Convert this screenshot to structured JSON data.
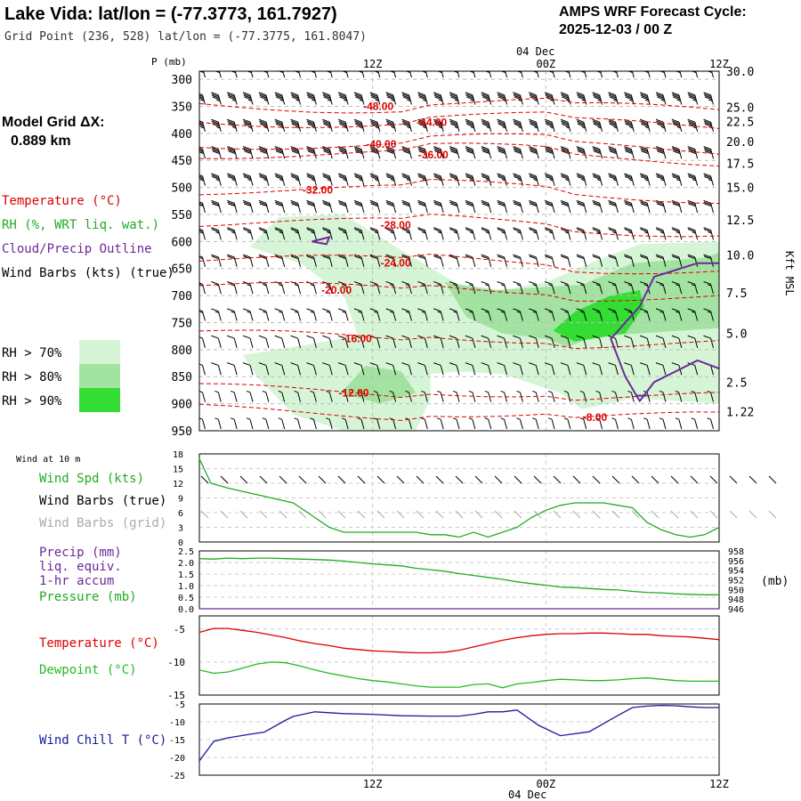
{
  "header": {
    "station_title": "Lake Vida:  lat/lon = (-77.3773, 161.7927)",
    "grid_point": "Grid Point (236, 528) lat/lon = (-77.3775, 161.8047)",
    "product": "AMPS WRF Forecast Cycle:",
    "cycle": "2025-12-03 / 00  Z",
    "grid_label": "Model Grid ΔX:",
    "grid_value": "0.889 km"
  },
  "time_axis": {
    "ticks": [
      "12Z",
      "00Z",
      "12Z"
    ],
    "date_label": "04 Dec",
    "forecast_hours": [
      0,
      12,
      24,
      36
    ]
  },
  "colors": {
    "temperature": "#dd0000",
    "rh": "#22aa22",
    "cloud": "#6a2a9a",
    "pressure": "#22aa22",
    "precip": "#6a2a9a",
    "dewpoint": "#22bb22",
    "windchill": "#1a1aa0",
    "wind_spd": "#22aa22",
    "grid_barb": "#aaaaaa",
    "rh70": "#d6f5d6",
    "rh80": "#a2e3a2",
    "rh90": "#33dd33"
  },
  "legend": {
    "temperature": "Temperature (°C)",
    "rh": "RH (%, WRT liq. wat.)",
    "cloud": "Cloud/Precip Outline",
    "barbs": "Wind Barbs (kts) (true)",
    "rh70": "RH > 70%",
    "rh80": "RH > 80%",
    "rh90": "RH > 90%"
  },
  "chart_data": [
    {
      "type": "heatmap",
      "title": "Time-height cross section",
      "ylabel": "P (mb)",
      "y2label": "Kft MSL",
      "pressure_levels": [
        300,
        350,
        400,
        450,
        500,
        550,
        600,
        650,
        700,
        750,
        800,
        850,
        900,
        950
      ],
      "ylim": [
        950,
        285
      ],
      "height_kft": [
        30.0,
        25.0,
        22.5,
        20.0,
        17.5,
        15.0,
        12.5,
        10.0,
        7.5,
        5.0,
        2.5,
        1.22
      ],
      "height_kft_labels": [
        "30.0",
        "25.0",
        "22.5",
        "20.0",
        "17.5",
        "15.0",
        "12.5",
        "10.0",
        "7.5",
        "5.0",
        "2.5",
        "1.22"
      ],
      "height_kft_pressure": [
        285,
        352,
        378,
        415,
        455,
        500,
        560,
        625,
        695,
        770,
        860,
        915
      ],
      "temperature_isotherms": [
        {
          "label": "-48.00",
          "value": -48,
          "label_at": [
            12.4,
            350
          ]
        },
        {
          "label": "-44.00",
          "value": -44,
          "label_at": [
            16.1,
            380
          ]
        },
        {
          "label": "-40.00",
          "value": -40,
          "label_at": [
            12.6,
            420
          ]
        },
        {
          "label": "-36.00",
          "value": -36,
          "label_at": [
            16.2,
            440
          ]
        },
        {
          "label": "-32.00",
          "value": -32,
          "label_at": [
            8.2,
            505
          ]
        },
        {
          "label": "-28.00",
          "value": -28,
          "label_at": [
            13.6,
            570
          ]
        },
        {
          "label": "-24.00",
          "value": -24,
          "label_at": [
            13.6,
            640
          ]
        },
        {
          "label": "-20.00",
          "value": -20,
          "label_at": [
            9.5,
            690
          ]
        },
        {
          "label": "-16.00",
          "value": -16,
          "label_at": [
            10.9,
            780
          ]
        },
        {
          "label": "-12.00",
          "value": -12,
          "label_at": [
            10.7,
            880
          ]
        },
        {
          "label": "-8.00",
          "value": -8,
          "label_at": [
            27.4,
            925
          ]
        }
      ],
      "rh_thresholds": [
        70,
        80,
        90
      ],
      "rh_regions": [
        {
          "threshold": 70,
          "outline": [
            [
              3.5,
              610
            ],
            [
              5.5,
              555
            ],
            [
              10.0,
              550
            ],
            [
              13.0,
              600
            ],
            [
              15.5,
              640
            ],
            [
              18.0,
              680
            ],
            [
              21.0,
              690
            ],
            [
              24.0,
              675
            ],
            [
              28.0,
              630
            ],
            [
              30.5,
              605
            ],
            [
              36,
              600
            ],
            [
              36,
              900
            ],
            [
              30.0,
              890
            ],
            [
              26.5,
              910
            ],
            [
              25.0,
              880
            ],
            [
              21.0,
              845
            ],
            [
              18.0,
              840
            ],
            [
              16.0,
              845
            ],
            [
              16.0,
              890
            ],
            [
              15.0,
              950
            ],
            [
              10.0,
              950
            ],
            [
              6.5,
              920
            ],
            [
              4.0,
              850
            ],
            [
              3.0,
              810
            ],
            [
              6.5,
              795
            ],
            [
              11.0,
              775
            ],
            [
              10.0,
              700
            ],
            [
              7.0,
              640
            ],
            [
              3.5,
              610
            ]
          ]
        },
        {
          "threshold": 80,
          "outline": [
            [
              17.0,
              675
            ],
            [
              20.5,
              690
            ],
            [
              26.5,
              680
            ],
            [
              30.0,
              640
            ],
            [
              35.0,
              630
            ],
            [
              36,
              620
            ],
            [
              36,
              760
            ],
            [
              30.5,
              770
            ],
            [
              27.5,
              775
            ],
            [
              25.5,
              795
            ],
            [
              24.0,
              780
            ],
            [
              21.0,
              770
            ],
            [
              18.5,
              740
            ],
            [
              17.0,
              675
            ]
          ]
        },
        {
          "threshold": 80,
          "outline": [
            [
              9.8,
              880
            ],
            [
              11.5,
              830
            ],
            [
              14.0,
              840
            ],
            [
              15.0,
              880
            ],
            [
              12.5,
              900
            ],
            [
              9.8,
              880
            ]
          ]
        },
        {
          "threshold": 90,
          "outline": [
            [
              24.5,
              765
            ],
            [
              26.0,
              730
            ],
            [
              28.5,
              700
            ],
            [
              30.5,
              690
            ],
            [
              30.8,
              720
            ],
            [
              29.5,
              770
            ],
            [
              26.0,
              785
            ],
            [
              24.5,
              765
            ]
          ]
        }
      ],
      "cloud_outline": [
        {
          "points": [
            [
              7.8,
              600
            ],
            [
              9.0,
              592
            ],
            [
              8.8,
              605
            ],
            [
              7.8,
              600
            ]
          ]
        },
        {
          "points": [
            [
              36,
              640
            ],
            [
              34.5,
              640
            ],
            [
              31.5,
              665
            ],
            [
              30.5,
              720
            ],
            [
              28.5,
              780
            ],
            [
              29.5,
              850
            ],
            [
              30.5,
              895
            ],
            [
              31.5,
              860
            ],
            [
              34.5,
              820
            ],
            [
              36,
              835
            ]
          ]
        },
        {
          "points": [
            [
              30.2,
              885
            ],
            [
              31.0,
              885
            ]
          ]
        }
      ],
      "wind_barbs_kts": {
        "rows_pressure": [
          300,
          350,
          400,
          450,
          500,
          550,
          600,
          650,
          700,
          750,
          800,
          850,
          900,
          950
        ],
        "speed_by_level": [
          40,
          45,
          45,
          40,
          35,
          30,
          25,
          20,
          15,
          15,
          10,
          10,
          5,
          5
        ],
        "direction_deg": 330
      }
    },
    {
      "type": "line",
      "title": "Wind at 10 m",
      "ylabel": "Wind Spd (kts)",
      "ylim": [
        0,
        18
      ],
      "yticks": [
        0,
        3,
        6,
        9,
        12,
        15,
        18
      ],
      "x": [
        0,
        0.8,
        2,
        3.5,
        5,
        6.5,
        8,
        9,
        10,
        11,
        12,
        13,
        14,
        15,
        16,
        17,
        18,
        19,
        20,
        21,
        22,
        23,
        24,
        25,
        26,
        27,
        28,
        29,
        30,
        31,
        32,
        33,
        34,
        35,
        36
      ],
      "values": [
        17,
        12,
        11,
        10,
        9,
        8,
        5,
        3,
        2,
        2,
        2,
        2,
        2,
        2,
        1.5,
        1.5,
        1,
        2,
        1,
        2,
        3,
        5,
        6.5,
        7.5,
        8,
        8,
        8,
        7.5,
        7,
        4,
        2.5,
        1.5,
        1,
        1.5,
        3
      ],
      "barbs_label": "Wind Barbs (true)",
      "grid_barbs_label": "Wind Barbs (grid)"
    },
    {
      "type": "line",
      "title": "Precip / Pressure",
      "series": [
        {
          "name": "Precip (mm) liq. equiv. 1-hr accum",
          "values": [
            0,
            0,
            0,
            0,
            0,
            0,
            0,
            0,
            0,
            0,
            0,
            0,
            0,
            0,
            0,
            0,
            0,
            0,
            0,
            0,
            0,
            0,
            0,
            0,
            0,
            0,
            0,
            0,
            0,
            0,
            0,
            0,
            0,
            0,
            0,
            0,
            0
          ]
        },
        {
          "name": "Pressure (mb)",
          "values": [
            956.4,
            956.3,
            956.5,
            956.4,
            956.5,
            956.5,
            956.4,
            956.3,
            956.2,
            956.1,
            955.9,
            955.6,
            955.3,
            955.1,
            954.9,
            954.4,
            954.1,
            953.8,
            953.3,
            952.9,
            952.5,
            952.1,
            951.6,
            951.2,
            950.9,
            950.5,
            950.4,
            950.2,
            950.0,
            949.9,
            949.6,
            949.4,
            949.3,
            949.1,
            949.0,
            948.9,
            948.9
          ]
        }
      ],
      "x": [
        0,
        1,
        2,
        3,
        4,
        5,
        6,
        7,
        8,
        9,
        10,
        11,
        12,
        13,
        14,
        15,
        16,
        17,
        18,
        19,
        20,
        21,
        22,
        23,
        24,
        25,
        26,
        27,
        28,
        29,
        30,
        31,
        32,
        33,
        34,
        35,
        36
      ],
      "precip_ylim": [
        0,
        2.5
      ],
      "precip_yticks": [
        "0.0",
        "0.5",
        "1.0",
        "1.5",
        "2.0",
        "2.5"
      ],
      "pressure_ylim": [
        946,
        958
      ],
      "pressure_yticks": [
        "946",
        "948",
        "950",
        "952",
        "954",
        "956",
        "958"
      ],
      "pressure_unit": "(mb)",
      "precip_label": [
        "Precip (mm)",
        "liq. equiv.",
        "1-hr accum"
      ],
      "pressure_label": "Pressure (mb)"
    },
    {
      "type": "line",
      "title": "Temperature / Dewpoint",
      "ylim": [
        -15,
        -3
      ],
      "yticks": [
        -15,
        -10,
        -5
      ],
      "x": [
        0,
        1,
        2,
        3,
        4,
        5,
        6,
        7,
        8,
        9,
        10,
        11,
        12,
        13,
        14,
        15,
        16,
        17,
        18,
        19,
        20,
        21,
        22,
        23,
        24,
        25,
        26,
        27,
        28,
        29,
        30,
        31,
        32,
        33,
        34,
        35,
        36
      ],
      "series": [
        {
          "name": "Temperature (°C)",
          "values": [
            -5.5,
            -4.9,
            -4.9,
            -5.2,
            -5.5,
            -5.9,
            -6.3,
            -6.8,
            -7.2,
            -7.5,
            -7.9,
            -8.1,
            -8.3,
            -8.4,
            -8.5,
            -8.6,
            -8.6,
            -8.5,
            -8.2,
            -7.7,
            -7.2,
            -6.7,
            -6.3,
            -6.0,
            -5.8,
            -5.7,
            -5.7,
            -5.6,
            -5.6,
            -5.7,
            -5.8,
            -5.8,
            -6.0,
            -6.1,
            -6.2,
            -6.4,
            -6.6
          ]
        },
        {
          "name": "Dewpoint (°C)",
          "values": [
            -11.2,
            -11.7,
            -11.5,
            -10.9,
            -10.3,
            -10.0,
            -10.1,
            -10.6,
            -11.2,
            -11.7,
            -12.1,
            -12.5,
            -12.8,
            -13.0,
            -13.3,
            -13.6,
            -13.8,
            -13.8,
            -13.8,
            -13.4,
            -13.3,
            -13.9,
            -13.3,
            -13.1,
            -12.8,
            -12.6,
            -12.7,
            -12.8,
            -12.8,
            -12.7,
            -12.5,
            -12.4,
            -12.6,
            -12.8,
            -12.9,
            -12.9,
            -12.9
          ]
        }
      ],
      "temperature_label": "Temperature (°C)",
      "dewpoint_label": "Dewpoint (°C)"
    },
    {
      "type": "line",
      "title": "Wind Chill",
      "ylim": [
        -25,
        -5
      ],
      "yticks": [
        -25,
        -20,
        -15,
        -10,
        -5
      ],
      "x": [
        0,
        1,
        2,
        3.5,
        4.5,
        6,
        6.5,
        8,
        10,
        12,
        14,
        16,
        18,
        19,
        20,
        21,
        22,
        23.5,
        25,
        27,
        29,
        30,
        31,
        32,
        33,
        34,
        35,
        36
      ],
      "values": [
        -21,
        -15.5,
        -14.5,
        -13.5,
        -12.9,
        -9.5,
        -8.5,
        -7.2,
        -7.7,
        -7.9,
        -8.3,
        -8.4,
        -8.4,
        -7.9,
        -7.2,
        -7.2,
        -6.7,
        -11.0,
        -13.9,
        -12.8,
        -8.2,
        -6.0,
        -5.6,
        -5.4,
        -5.5,
        -5.8,
        -6.0,
        -6.0
      ],
      "label": "Wind Chill T (°C)"
    }
  ],
  "panel_labels": {
    "wind10": "Wind at 10 m",
    "wind_spd": "Wind Spd (kts)",
    "barbs_true": "Wind Barbs (true)",
    "barbs_grid": "Wind Barbs (grid)",
    "precip": [
      "Precip (mm)",
      "liq. equiv.",
      "1-hr accum"
    ],
    "pressure": "Pressure (mb)",
    "pressure_unit": "(mb)",
    "temperature": "Temperature (°C)",
    "dewpoint": "Dewpoint (°C)",
    "windchill": "Wind Chill T (°C)",
    "p_axis": "P (mb)",
    "kft": "Kft MSL"
  }
}
